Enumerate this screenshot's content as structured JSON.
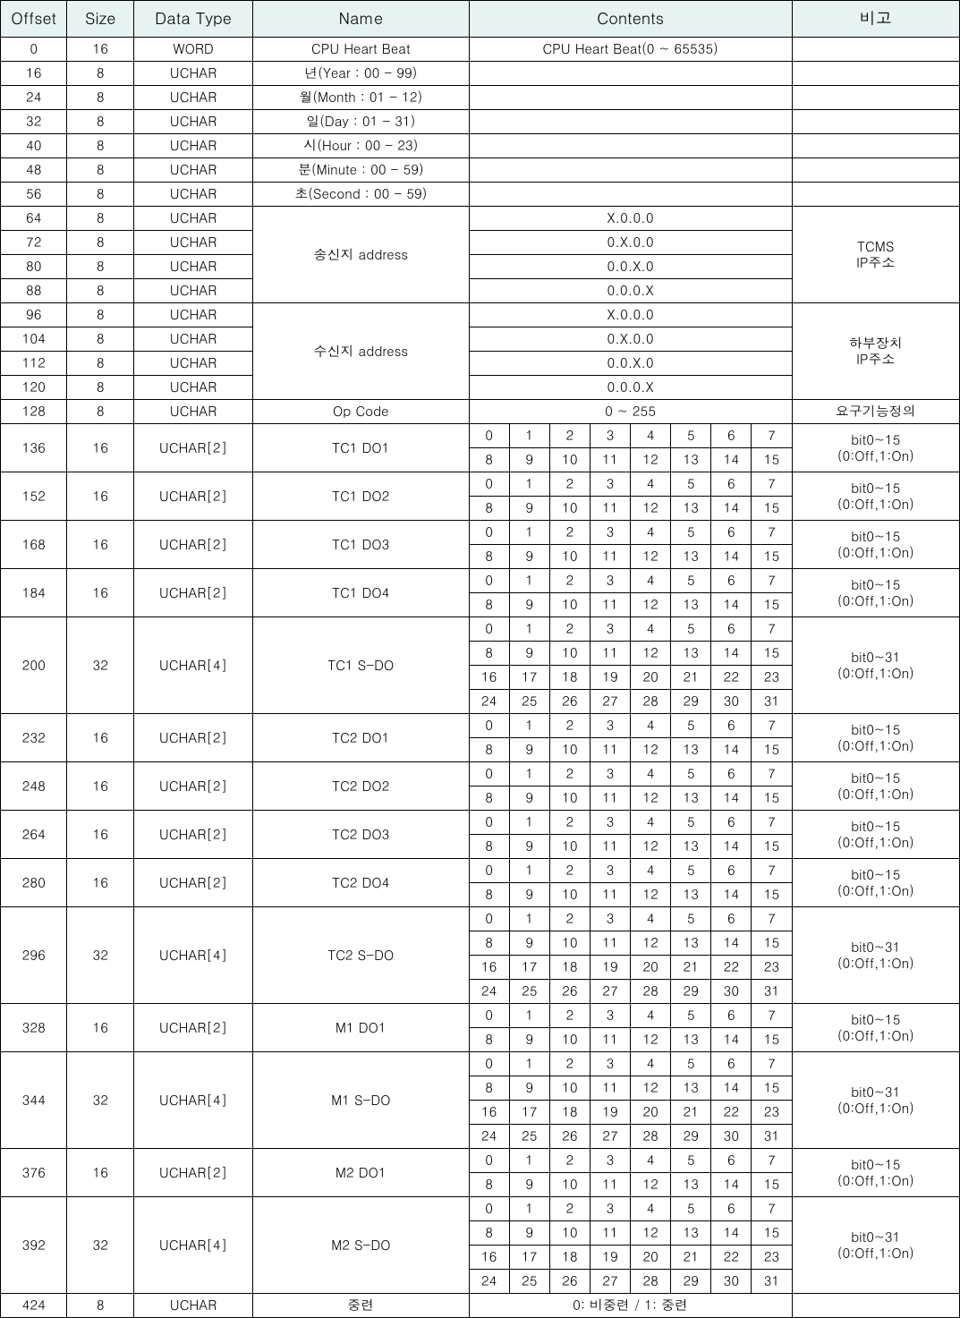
{
  "colors": {
    "header_bg": "#e8f2f2",
    "border": "#000000",
    "bg": "#ffffff",
    "text": "#000000"
  },
  "headers": {
    "offset": "Offset",
    "size": "Size",
    "type": "Data Type",
    "name": "Name",
    "contents": "Contents",
    "remark": "비고"
  },
  "rows": {
    "r0": {
      "off": "0",
      "sz": "16",
      "ty": "WORD",
      "nm": "CPU Heart Beat",
      "ct": "CPU Heart Beat(0 ~ 65535)",
      "rm": ""
    },
    "r16": {
      "off": "16",
      "sz": "8",
      "ty": "UCHAR",
      "nm": "년(Year : 00 - 99)",
      "ct": "",
      "rm": ""
    },
    "r24": {
      "off": "24",
      "sz": "8",
      "ty": "UCHAR",
      "nm": "월(Month : 01 - 12)",
      "ct": "",
      "rm": ""
    },
    "r32": {
      "off": "32",
      "sz": "8",
      "ty": "UCHAR",
      "nm": "일(Day : 01 - 31)",
      "ct": "",
      "rm": ""
    },
    "r40": {
      "off": "40",
      "sz": "8",
      "ty": "UCHAR",
      "nm": "시(Hour : 00 - 23)",
      "ct": "",
      "rm": ""
    },
    "r48": {
      "off": "48",
      "sz": "8",
      "ty": "UCHAR",
      "nm": "분(Minute : 00 - 59)",
      "ct": "",
      "rm": ""
    },
    "r56": {
      "off": "56",
      "sz": "8",
      "ty": "UCHAR",
      "nm": "초(Second : 00 - 59)",
      "ct": "",
      "rm": ""
    },
    "r64": {
      "off": "64",
      "sz": "8",
      "ty": "UCHAR",
      "ct": "X.0.0.0"
    },
    "r72": {
      "off": "72",
      "sz": "8",
      "ty": "UCHAR",
      "ct": "0.X.0.0"
    },
    "r80": {
      "off": "80",
      "sz": "8",
      "ty": "UCHAR",
      "ct": "0.0.X.0"
    },
    "r88": {
      "off": "88",
      "sz": "8",
      "ty": "UCHAR",
      "ct": "0.0.0.X"
    },
    "sndNm": "송신지 address",
    "sndRm1": "TCMS",
    "sndRm2": "IP주소",
    "r96": {
      "off": "96",
      "sz": "8",
      "ty": "UCHAR",
      "ct": "X.0.0.0"
    },
    "r104": {
      "off": "104",
      "sz": "8",
      "ty": "UCHAR",
      "ct": "0.X.0.0"
    },
    "r112": {
      "off": "112",
      "sz": "8",
      "ty": "UCHAR",
      "ct": "0.0.X.0"
    },
    "r120": {
      "off": "120",
      "sz": "8",
      "ty": "UCHAR",
      "ct": "0.0.0.X"
    },
    "rcvNm": "수신지 address",
    "rcvRm1": "하부장치",
    "rcvRm2": "IP주소",
    "r128": {
      "off": "128",
      "sz": "8",
      "ty": "UCHAR",
      "nm": "Op Code",
      "ct": "0 ~ 255",
      "rm": "요구기능정의"
    },
    "r136": {
      "off": "136",
      "sz": "16",
      "ty": "UCHAR[2]",
      "nm": "TC1 DO1"
    },
    "r152": {
      "off": "152",
      "sz": "16",
      "ty": "UCHAR[2]",
      "nm": "TC1 DO2"
    },
    "r168": {
      "off": "168",
      "sz": "16",
      "ty": "UCHAR[2]",
      "nm": "TC1 DO3"
    },
    "r184": {
      "off": "184",
      "sz": "16",
      "ty": "UCHAR[2]",
      "nm": "TC1 DO4"
    },
    "r200": {
      "off": "200",
      "sz": "32",
      "ty": "UCHAR[4]",
      "nm": "TC1 S-DO"
    },
    "r232": {
      "off": "232",
      "sz": "16",
      "ty": "UCHAR[2]",
      "nm": "TC2 DO1"
    },
    "r248": {
      "off": "248",
      "sz": "16",
      "ty": "UCHAR[2]",
      "nm": "TC2 DO2"
    },
    "r264": {
      "off": "264",
      "sz": "16",
      "ty": "UCHAR[2]",
      "nm": "TC2 DO3"
    },
    "r280": {
      "off": "280",
      "sz": "16",
      "ty": "UCHAR[2]",
      "nm": "TC2 DO4"
    },
    "r296": {
      "off": "296",
      "sz": "32",
      "ty": "UCHAR[4]",
      "nm": "TC2 S-DO"
    },
    "r328": {
      "off": "328",
      "sz": "16",
      "ty": "UCHAR[2]",
      "nm": "M1 DO1"
    },
    "r344": {
      "off": "344",
      "sz": "32",
      "ty": "UCHAR[4]",
      "nm": "M1 S-DO"
    },
    "r376": {
      "off": "376",
      "sz": "16",
      "ty": "UCHAR[2]",
      "nm": "M2 DO1"
    },
    "r392": {
      "off": "392",
      "sz": "32",
      "ty": "UCHAR[4]",
      "nm": "M2 S-DO"
    },
    "r424": {
      "off": "424",
      "sz": "8",
      "ty": "UCHAR",
      "nm": "중련",
      "ct": "0: 비중련 / 1: 중련",
      "rm": ""
    }
  },
  "bitRm16_1": "bit0~15",
  "bitRm16_2": "(0:Off,1:On)",
  "bitRm32_1": "bit0~31",
  "bitRm32_2": "(0:Off,1:On)",
  "bits": {
    "b0": "0",
    "b1": "1",
    "b2": "2",
    "b3": "3",
    "b4": "4",
    "b5": "5",
    "b6": "6",
    "b7": "7",
    "b8": "8",
    "b9": "9",
    "b10": "10",
    "b11": "11",
    "b12": "12",
    "b13": "13",
    "b14": "14",
    "b15": "15",
    "b16": "16",
    "b17": "17",
    "b18": "18",
    "b19": "19",
    "b20": "20",
    "b21": "21",
    "b22": "22",
    "b23": "23",
    "b24": "24",
    "b25": "25",
    "b26": "26",
    "b27": "27",
    "b28": "28",
    "b29": "29",
    "b30": "30",
    "b31": "31"
  }
}
